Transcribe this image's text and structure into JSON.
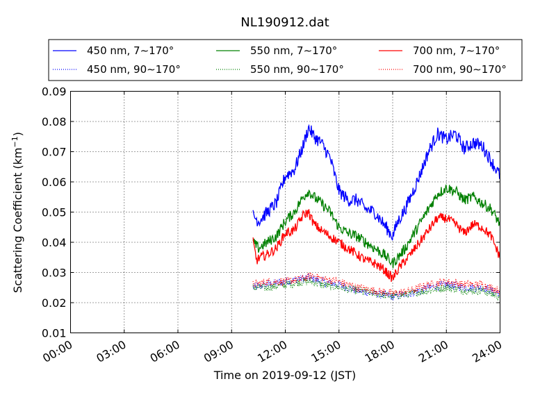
{
  "chart_data": {
    "type": "line",
    "title": "NL190912.dat",
    "xlabel": "Time on 2019-09-12 (JST)",
    "ylabel_main": "Scattering Coefficient (km",
    "ylabel_sup": "−1",
    "ylabel_close": ")",
    "ylim": [
      0.01,
      0.09
    ],
    "yticks": [
      0.01,
      0.02,
      0.03,
      0.04,
      0.05,
      0.06,
      0.07,
      0.08,
      0.09
    ],
    "ytick_labels": [
      "0.01",
      "0.02",
      "0.03",
      "0.04",
      "0.05",
      "0.06",
      "0.07",
      "0.08",
      "0.09"
    ],
    "xlim_hours": [
      0,
      24
    ],
    "xticks_hours": [
      0,
      3,
      6,
      9,
      12,
      15,
      18,
      21,
      24
    ],
    "xtick_labels": [
      "00:00",
      "03:00",
      "06:00",
      "09:00",
      "12:00",
      "15:00",
      "18:00",
      "21:00",
      "24:00"
    ],
    "grid": true,
    "legend_position": "top",
    "legend": [
      {
        "label": "450 nm, 7∼170°",
        "color": "#0000ff",
        "style": "solid"
      },
      {
        "label": "550 nm, 7∼170°",
        "color": "#008000",
        "style": "solid"
      },
      {
        "label": "700 nm, 7∼170°",
        "color": "#ff0000",
        "style": "solid"
      },
      {
        "label": "450 nm, 90∼170°",
        "color": "#0000ff",
        "style": "dotted"
      },
      {
        "label": "550 nm, 90∼170°",
        "color": "#008000",
        "style": "dotted"
      },
      {
        "label": "700 nm, 90∼170°",
        "color": "#ff0000",
        "style": "dotted"
      }
    ],
    "series": [
      {
        "name": "450 nm, 7∼170°",
        "color": "#0000ff",
        "style": "solid",
        "noise": 0.0022,
        "points": [
          [
            10.2,
            0.049
          ],
          [
            10.5,
            0.047
          ],
          [
            11.0,
            0.05
          ],
          [
            11.5,
            0.053
          ],
          [
            12.0,
            0.062
          ],
          [
            12.5,
            0.064
          ],
          [
            13.0,
            0.072
          ],
          [
            13.3,
            0.078
          ],
          [
            13.6,
            0.075
          ],
          [
            14.0,
            0.073
          ],
          [
            14.5,
            0.068
          ],
          [
            15.0,
            0.057
          ],
          [
            15.5,
            0.054
          ],
          [
            16.0,
            0.054
          ],
          [
            16.5,
            0.051
          ],
          [
            17.0,
            0.05
          ],
          [
            17.5,
            0.046
          ],
          [
            18.0,
            0.042
          ],
          [
            18.3,
            0.047
          ],
          [
            18.7,
            0.051
          ],
          [
            19.0,
            0.055
          ],
          [
            19.5,
            0.062
          ],
          [
            20.0,
            0.07
          ],
          [
            20.5,
            0.076
          ],
          [
            21.0,
            0.074
          ],
          [
            21.5,
            0.076
          ],
          [
            22.0,
            0.071
          ],
          [
            22.5,
            0.073
          ],
          [
            23.0,
            0.072
          ],
          [
            23.5,
            0.067
          ],
          [
            24.0,
            0.062
          ]
        ]
      },
      {
        "name": "550 nm, 7∼170°",
        "color": "#008000",
        "style": "solid",
        "noise": 0.0018,
        "points": [
          [
            10.2,
            0.04
          ],
          [
            10.5,
            0.038
          ],
          [
            11.0,
            0.04
          ],
          [
            11.5,
            0.042
          ],
          [
            12.0,
            0.047
          ],
          [
            12.5,
            0.05
          ],
          [
            13.0,
            0.055
          ],
          [
            13.3,
            0.057
          ],
          [
            13.6,
            0.055
          ],
          [
            14.0,
            0.053
          ],
          [
            14.5,
            0.05
          ],
          [
            15.0,
            0.045
          ],
          [
            15.5,
            0.043
          ],
          [
            16.0,
            0.042
          ],
          [
            16.5,
            0.04
          ],
          [
            17.0,
            0.038
          ],
          [
            17.5,
            0.036
          ],
          [
            18.0,
            0.033
          ],
          [
            18.3,
            0.035
          ],
          [
            18.7,
            0.038
          ],
          [
            19.0,
            0.041
          ],
          [
            19.5,
            0.046
          ],
          [
            20.0,
            0.051
          ],
          [
            20.5,
            0.056
          ],
          [
            21.0,
            0.058
          ],
          [
            21.5,
            0.057
          ],
          [
            22.0,
            0.054
          ],
          [
            22.5,
            0.055
          ],
          [
            23.0,
            0.053
          ],
          [
            23.5,
            0.051
          ],
          [
            24.0,
            0.046
          ]
        ]
      },
      {
        "name": "700 nm, 7∼170°",
        "color": "#ff0000",
        "style": "solid",
        "noise": 0.0016,
        "points": [
          [
            10.2,
            0.04
          ],
          [
            10.4,
            0.034
          ],
          [
            10.6,
            0.035
          ],
          [
            11.0,
            0.036
          ],
          [
            11.5,
            0.038
          ],
          [
            12.0,
            0.043
          ],
          [
            12.5,
            0.044
          ],
          [
            13.0,
            0.049
          ],
          [
            13.3,
            0.05
          ],
          [
            13.6,
            0.046
          ],
          [
            14.0,
            0.044
          ],
          [
            14.5,
            0.042
          ],
          [
            15.0,
            0.04
          ],
          [
            15.5,
            0.038
          ],
          [
            16.0,
            0.036
          ],
          [
            16.5,
            0.034
          ],
          [
            17.0,
            0.033
          ],
          [
            17.5,
            0.031
          ],
          [
            18.0,
            0.028
          ],
          [
            18.3,
            0.031
          ],
          [
            18.7,
            0.034
          ],
          [
            19.0,
            0.036
          ],
          [
            19.5,
            0.04
          ],
          [
            20.0,
            0.044
          ],
          [
            20.5,
            0.048
          ],
          [
            21.0,
            0.048
          ],
          [
            21.5,
            0.046
          ],
          [
            22.0,
            0.043
          ],
          [
            22.5,
            0.046
          ],
          [
            23.0,
            0.045
          ],
          [
            23.5,
            0.042
          ],
          [
            24.0,
            0.035
          ]
        ]
      },
      {
        "name": "450 nm, 90∼170°",
        "color": "#0000ff",
        "style": "dotted",
        "noise": 0.0013,
        "points": [
          [
            10.2,
            0.025
          ],
          [
            11.0,
            0.026
          ],
          [
            12.0,
            0.027
          ],
          [
            13.0,
            0.028
          ],
          [
            13.5,
            0.028
          ],
          [
            14.0,
            0.027
          ],
          [
            15.0,
            0.026
          ],
          [
            16.0,
            0.024
          ],
          [
            17.0,
            0.023
          ],
          [
            18.0,
            0.022
          ],
          [
            19.0,
            0.023
          ],
          [
            20.0,
            0.025
          ],
          [
            21.0,
            0.026
          ],
          [
            22.0,
            0.025
          ],
          [
            23.0,
            0.025
          ],
          [
            24.0,
            0.023
          ]
        ]
      },
      {
        "name": "550 nm, 90∼170°",
        "color": "#008000",
        "style": "dotted",
        "noise": 0.0013,
        "points": [
          [
            10.2,
            0.025
          ],
          [
            11.0,
            0.025
          ],
          [
            12.0,
            0.026
          ],
          [
            13.0,
            0.027
          ],
          [
            13.5,
            0.027
          ],
          [
            14.0,
            0.026
          ],
          [
            15.0,
            0.025
          ],
          [
            16.0,
            0.024
          ],
          [
            17.0,
            0.023
          ],
          [
            18.0,
            0.022
          ],
          [
            19.0,
            0.023
          ],
          [
            20.0,
            0.024
          ],
          [
            21.0,
            0.025
          ],
          [
            22.0,
            0.024
          ],
          [
            23.0,
            0.024
          ],
          [
            24.0,
            0.022
          ]
        ]
      },
      {
        "name": "700 nm, 90∼170°",
        "color": "#ff0000",
        "style": "dotted",
        "noise": 0.0013,
        "points": [
          [
            10.2,
            0.026
          ],
          [
            11.0,
            0.027
          ],
          [
            12.0,
            0.027
          ],
          [
            13.0,
            0.028
          ],
          [
            13.5,
            0.029
          ],
          [
            14.0,
            0.028
          ],
          [
            15.0,
            0.027
          ],
          [
            16.0,
            0.025
          ],
          [
            17.0,
            0.024
          ],
          [
            18.0,
            0.023
          ],
          [
            19.0,
            0.024
          ],
          [
            20.0,
            0.026
          ],
          [
            21.0,
            0.027
          ],
          [
            22.0,
            0.026
          ],
          [
            23.0,
            0.026
          ],
          [
            24.0,
            0.024
          ]
        ]
      }
    ]
  }
}
